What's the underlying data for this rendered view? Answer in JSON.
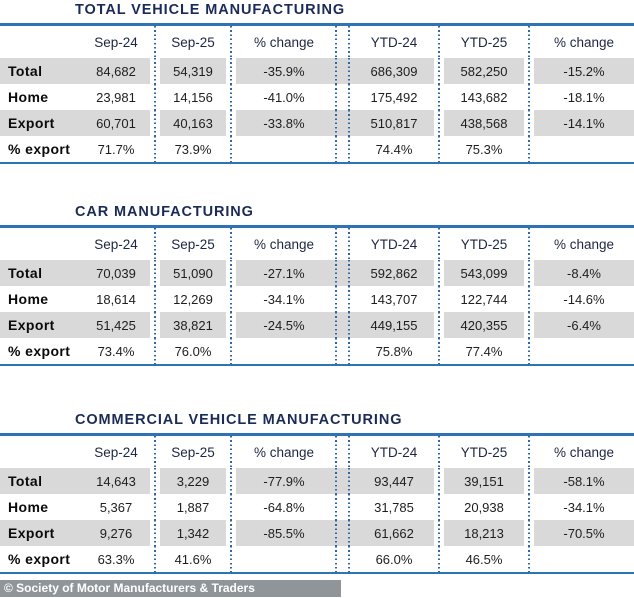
{
  "colors": {
    "title_navy": "#1b2b57",
    "rule_blue": "#2e74b5",
    "dot_blue": "#2f66a5",
    "stripe_gray": "#d9d9d9",
    "footer_bg": "#90959a",
    "footer_text": "#ffffff"
  },
  "chart_data": [
    {
      "type": "table",
      "title": "TOTAL VEHICLE MANUFACTURING",
      "columns": [
        "Sep-24",
        "Sep-25",
        "% change",
        "YTD-24",
        "YTD-25",
        "% change"
      ],
      "rows": [
        {
          "label": "Total",
          "values": [
            "84,682",
            "54,319",
            "-35.9%",
            "686,309",
            "582,250",
            "-15.2%"
          ]
        },
        {
          "label": "Home",
          "values": [
            "23,981",
            "14,156",
            "-41.0%",
            "175,492",
            "143,682",
            "-18.1%"
          ]
        },
        {
          "label": "Export",
          "values": [
            "60,701",
            "40,163",
            "-33.8%",
            "510,817",
            "438,568",
            "-14.1%"
          ]
        },
        {
          "label": "% export",
          "values": [
            "71.7%",
            "73.9%",
            "",
            "74.4%",
            "75.3%",
            ""
          ]
        }
      ],
      "layout_hints": {
        "striped_rows": [
          "Total",
          "Export"
        ],
        "group_separator_after_column": "% change"
      }
    },
    {
      "type": "table",
      "title": "CAR MANUFACTURING",
      "columns": [
        "Sep-24",
        "Sep-25",
        "% change",
        "YTD-24",
        "YTD-25",
        "% change"
      ],
      "rows": [
        {
          "label": "Total",
          "values": [
            "70,039",
            "51,090",
            "-27.1%",
            "592,862",
            "543,099",
            "-8.4%"
          ]
        },
        {
          "label": "Home",
          "values": [
            "18,614",
            "12,269",
            "-34.1%",
            "143,707",
            "122,744",
            "-14.6%"
          ]
        },
        {
          "label": "Export",
          "values": [
            "51,425",
            "38,821",
            "-24.5%",
            "449,155",
            "420,355",
            "-6.4%"
          ]
        },
        {
          "label": "% export",
          "values": [
            "73.4%",
            "76.0%",
            "",
            "75.8%",
            "77.4%",
            ""
          ]
        }
      ],
      "layout_hints": {
        "striped_rows": [
          "Total",
          "Export"
        ],
        "group_separator_after_column": "% change"
      }
    },
    {
      "type": "table",
      "title": "COMMERCIAL VEHICLE MANUFACTURING",
      "columns": [
        "Sep-24",
        "Sep-25",
        "% change",
        "YTD-24",
        "YTD-25",
        "% change"
      ],
      "rows": [
        {
          "label": "Total",
          "values": [
            "14,643",
            "3,229",
            "-77.9%",
            "93,447",
            "39,151",
            "-58.1%"
          ]
        },
        {
          "label": "Home",
          "values": [
            "5,367",
            "1,887",
            "-64.8%",
            "31,785",
            "20,938",
            "-34.1%"
          ]
        },
        {
          "label": "Export",
          "values": [
            "9,276",
            "1,342",
            "-85.5%",
            "61,662",
            "18,213",
            "-70.5%"
          ]
        },
        {
          "label": "% export",
          "values": [
            "63.3%",
            "41.6%",
            "",
            "66.0%",
            "46.5%",
            ""
          ]
        }
      ],
      "layout_hints": {
        "striped_rows": [
          "Total",
          "Export"
        ],
        "group_separator_after_column": "% change"
      }
    }
  ],
  "footer": {
    "text": "© Society of Motor Manufacturers & Traders"
  }
}
